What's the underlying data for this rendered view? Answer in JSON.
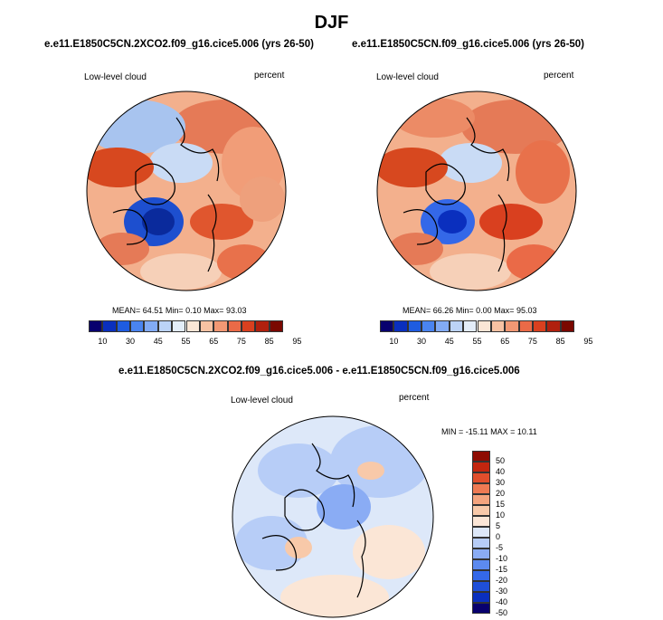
{
  "title": "DJF",
  "panels": [
    {
      "case": "e.e11.E1850C5CN.2XCO2.f09_g16.cice5.006 (yrs 26-50)",
      "variable": "Low-level cloud",
      "units": "percent",
      "stats": {
        "mean_label": "MEAN=",
        "mean": "64.51",
        "min_label": "Min=",
        "min": "0.10",
        "max_label": "Max=",
        "max": "93.03"
      }
    },
    {
      "case": "e.e11.E1850C5CN.f09_g16.cice5.006 (yrs 26-50)",
      "variable": "Low-level cloud",
      "units": "percent",
      "stats": {
        "mean_label": "MEAN=",
        "mean": "66.26",
        "min_label": "Min=",
        "min": "0.00",
        "max_label": "Max=",
        "max": "95.03"
      }
    }
  ],
  "diff": {
    "title": "e.e11.E1850C5CN.2XCO2.f09_g16.cice5.006 - e.e11.E1850C5CN.f09_g16.cice5.006",
    "variable": "Low-level cloud",
    "units": "percent",
    "minmax": "MIN = -15.11 MAX =  10.11"
  },
  "colorbar_abs": {
    "colors": [
      "#08006e",
      "#0a2fbe",
      "#1f5ce0",
      "#4a84f0",
      "#82abf5",
      "#bcd3f7",
      "#e3edf9",
      "#fbe6d6",
      "#f7c2a3",
      "#f19874",
      "#ea6a47",
      "#d9401f",
      "#b0200e",
      "#7a0800"
    ],
    "labels": [
      "10",
      "30",
      "45",
      "55",
      "65",
      "75",
      "85",
      "95"
    ]
  },
  "colorbar_diff": {
    "colors": [
      "#08006e",
      "#0a2fbe",
      "#1f4fd8",
      "#3468e8",
      "#5c8af0",
      "#8aacf4",
      "#b7cdf7",
      "#dde8f9",
      "#fbe6d6",
      "#f8c9a9",
      "#f4a47e",
      "#ee7a53",
      "#e04e2c",
      "#c3260f",
      "#8e0c02"
    ],
    "labels": [
      "50",
      "40",
      "30",
      "20",
      "15",
      "10",
      "5",
      "0",
      "-5",
      "-10",
      "-15",
      "-20",
      "-30",
      "-40",
      "-50"
    ]
  },
  "icons": [
    "north-polar-map-icon"
  ]
}
